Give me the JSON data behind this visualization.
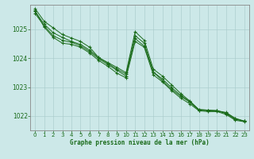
{
  "xlabel": "Graphe pression niveau de la mer (hPa)",
  "xlim": [
    -0.5,
    23.5
  ],
  "ylim": [
    1021.5,
    1025.85
  ],
  "yticks": [
    1022,
    1023,
    1024,
    1025
  ],
  "xticks": [
    0,
    1,
    2,
    3,
    4,
    5,
    6,
    7,
    8,
    9,
    10,
    11,
    12,
    13,
    14,
    15,
    16,
    17,
    18,
    19,
    20,
    21,
    22,
    23
  ],
  "bg_color": "#cce8e8",
  "grid_color_major": "#aacccc",
  "grid_color_minor": "#bbdddd",
  "line_color": "#1a6b1a",
  "series": [
    [
      1025.72,
      1025.28,
      1025.05,
      1024.82,
      1024.7,
      1024.58,
      1024.38,
      1024.02,
      1023.85,
      1023.68,
      1023.5,
      1024.92,
      1024.62,
      1023.62,
      1023.38,
      1023.08,
      1022.78,
      1022.52,
      1022.22,
      1022.2,
      1022.18,
      1022.12,
      1021.92,
      1021.82
    ],
    [
      1025.62,
      1025.18,
      1024.88,
      1024.72,
      1024.58,
      1024.48,
      1024.28,
      1024.02,
      1023.82,
      1023.62,
      1023.45,
      1024.78,
      1024.52,
      1023.52,
      1023.28,
      1022.98,
      1022.72,
      1022.5,
      1022.22,
      1022.2,
      1022.18,
      1022.1,
      1021.9,
      1021.82
    ],
    [
      1025.55,
      1025.12,
      1024.78,
      1024.62,
      1024.55,
      1024.43,
      1024.23,
      1023.98,
      1023.78,
      1023.58,
      1023.38,
      1024.68,
      1024.42,
      1023.52,
      1023.22,
      1022.92,
      1022.68,
      1022.48,
      1022.2,
      1022.18,
      1022.18,
      1022.08,
      1021.88,
      1021.82
    ],
    [
      1025.65,
      1025.08,
      1024.72,
      1024.52,
      1024.48,
      1024.38,
      1024.18,
      1023.92,
      1023.72,
      1023.48,
      1023.32,
      1024.58,
      1024.38,
      1023.42,
      1023.18,
      1022.88,
      1022.62,
      1022.42,
      1022.18,
      1022.15,
      1022.15,
      1022.05,
      1021.85,
      1021.8
    ]
  ]
}
